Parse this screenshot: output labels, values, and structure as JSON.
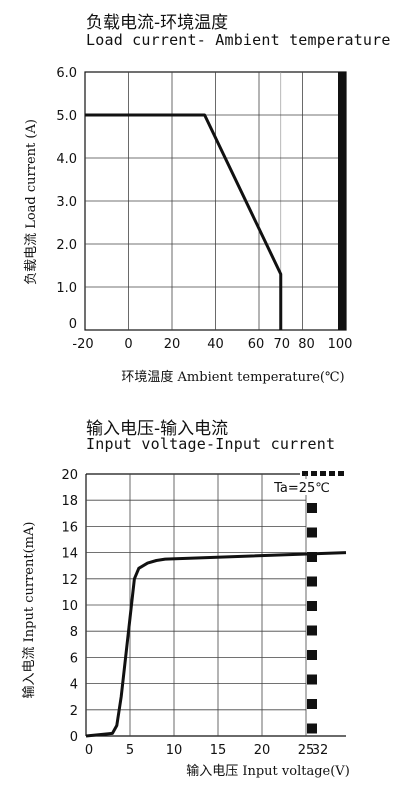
{
  "chart_data": [
    {
      "type": "line",
      "title": "负载电流-环境温度",
      "subtitle": "Load current- Ambient temperature",
      "ylabel": "负载电流 Load current (A)",
      "xlabel": "环境温度 Ambient temperature(℃)",
      "ylim": [
        0,
        6.0
      ],
      "yticks": [
        "6.0",
        "5.0",
        "4.0",
        "3.0",
        "2.0",
        "1.0",
        "0"
      ],
      "xticks": [
        "-20",
        "0",
        "20",
        "40",
        "60",
        "70",
        "80",
        "100"
      ],
      "grid": true,
      "series": [
        {
          "x": [
            -20,
            35,
            70,
            70
          ],
          "y": [
            5.0,
            5.0,
            1.3,
            0
          ]
        }
      ]
    },
    {
      "type": "line",
      "title": "输入电压-输入电流",
      "subtitle": "Input voltage-Input current",
      "ylabel": "输入电流 Input current(mA)",
      "xlabel": "输入电压 Input voltage(V)",
      "ylim": [
        0,
        20
      ],
      "yticks": [
        "20",
        "18",
        "16",
        "14",
        "12",
        "10",
        "8",
        "6",
        "4",
        "2",
        "0"
      ],
      "xticks": [
        "0",
        "5",
        "10",
        "15",
        "20",
        "25",
        "32"
      ],
      "grid": true,
      "annotation": "Ta=25℃",
      "series": [
        {
          "x": [
            0,
            3,
            3.5,
            4,
            4.5,
            5,
            5.5,
            6,
            7,
            8,
            9,
            32
          ],
          "y": [
            0,
            0.2,
            0.8,
            3,
            6,
            9,
            12,
            12.8,
            13.2,
            13.4,
            13.5,
            14
          ]
        }
      ]
    }
  ]
}
